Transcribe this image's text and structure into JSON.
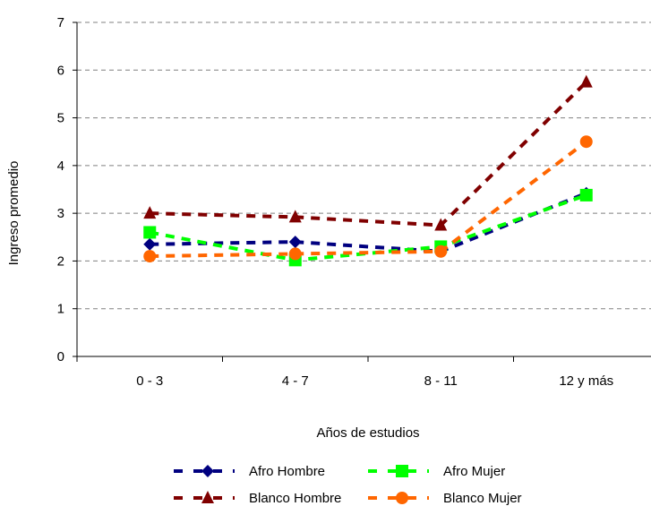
{
  "chart_data": {
    "type": "line",
    "title": "",
    "xlabel": "Años de estudios",
    "ylabel": "Ingreso promedio",
    "categories": [
      "0 - 3",
      "4 - 7",
      "8 - 11",
      "12  y más"
    ],
    "ylim": [
      0,
      7
    ],
    "yticks": [
      "0",
      "1",
      "2",
      "3",
      "4",
      "5",
      "6",
      "7"
    ],
    "grid": true,
    "legend_position": "bottom",
    "series": [
      {
        "name": "Afro Hombre",
        "values": [
          2.35,
          2.4,
          2.2,
          3.42
        ],
        "color": "#000080",
        "marker": "diamond"
      },
      {
        "name": "Afro Mujer",
        "values": [
          2.6,
          2.02,
          2.3,
          3.38
        ],
        "color": "#00ff00",
        "marker": "square"
      },
      {
        "name": "Blanco Hombre",
        "values": [
          3.0,
          2.92,
          2.75,
          5.75
        ],
        "color": "#800000",
        "marker": "triangle"
      },
      {
        "name": "Blanco Mujer",
        "values": [
          2.1,
          2.15,
          2.2,
          4.5
        ],
        "color": "#ff6600",
        "marker": "circle"
      }
    ]
  }
}
